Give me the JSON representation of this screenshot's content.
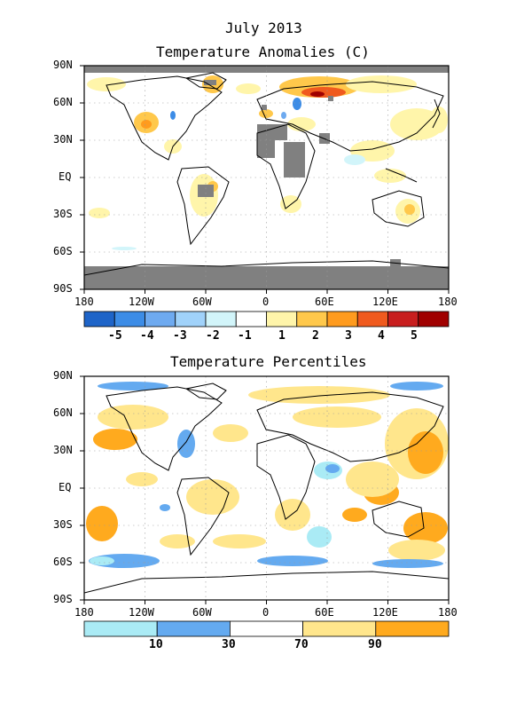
{
  "maps": {
    "anomaly": {
      "title_line1": "July 2013",
      "title_line2": "Temperature Anomalies (C)",
      "colorbar_labels": [
        "-5",
        "-4",
        "-3",
        "-2",
        "-1",
        "1",
        "2",
        "3",
        "4",
        "5"
      ],
      "colorbar_colors": [
        "#1e64c8",
        "#3c8ce6",
        "#6eaaf0",
        "#a0d2fa",
        "#d2f5fa",
        "#ffffff",
        "#fff5aa",
        "#ffc84b",
        "#ff9b1e",
        "#f05a1e",
        "#c81e1e",
        "#a00000"
      ]
    },
    "percentile": {
      "title": "Temperature Percentiles",
      "colorbar_labels": [
        "10",
        "30",
        "70",
        "90"
      ],
      "colorbar_colors": [
        "#aaebf5",
        "#64aaf0",
        "#ffffff",
        "#ffe68c",
        "#ffaa1e"
      ]
    },
    "lat_labels": [
      "90N",
      "60N",
      "30N",
      "EQ",
      "30S",
      "60S",
      "90S"
    ],
    "lon_labels": [
      "180",
      "120W",
      "60W",
      "0",
      "60E",
      "120E",
      "180"
    ],
    "missing_color": "#808080"
  }
}
